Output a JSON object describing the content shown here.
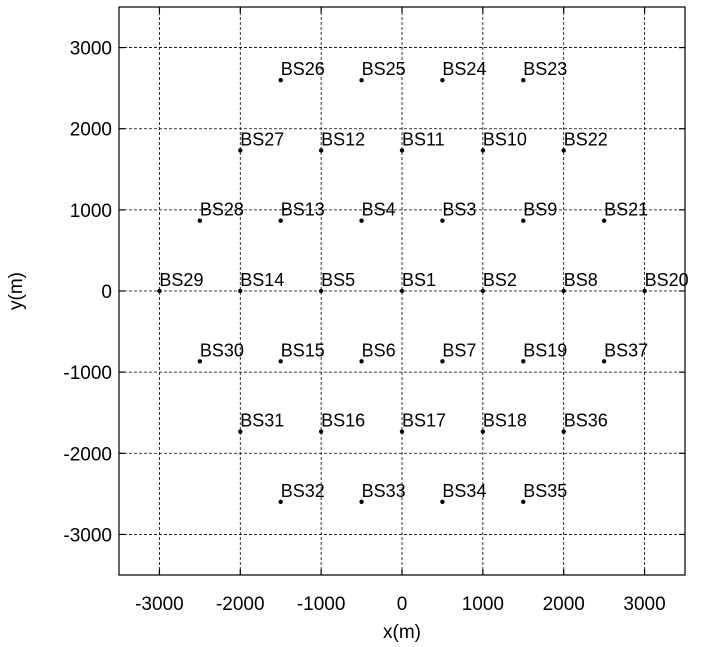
{
  "chart_data": {
    "type": "scatter",
    "xlabel": "x(m)",
    "ylabel": "y(m)",
    "xlim": [
      -3500,
      3500
    ],
    "ylim": [
      -3500,
      3500
    ],
    "xticks": [
      -3000,
      -2000,
      -1000,
      0,
      1000,
      2000,
      3000
    ],
    "yticks": [
      -3000,
      -2000,
      -1000,
      0,
      1000,
      2000,
      3000
    ],
    "xtick_labels": [
      "-3000",
      "-2000",
      "-1000",
      "0",
      "1000",
      "2000",
      "3000"
    ],
    "ytick_labels": [
      "-3000",
      "-2000",
      "-1000",
      "0",
      "1000",
      "2000",
      "3000"
    ],
    "grid": true,
    "points": [
      {
        "label": "BS1",
        "x": 0,
        "y": 0
      },
      {
        "label": "BS2",
        "x": 1000,
        "y": 0
      },
      {
        "label": "BS3",
        "x": 500,
        "y": 866
      },
      {
        "label": "BS4",
        "x": -500,
        "y": 866
      },
      {
        "label": "BS5",
        "x": -1000,
        "y": 0
      },
      {
        "label": "BS6",
        "x": -500,
        "y": -866
      },
      {
        "label": "BS7",
        "x": 500,
        "y": -866
      },
      {
        "label": "BS8",
        "x": 2000,
        "y": 0
      },
      {
        "label": "BS9",
        "x": 1500,
        "y": 866
      },
      {
        "label": "BS10",
        "x": 1000,
        "y": 1732
      },
      {
        "label": "BS11",
        "x": 0,
        "y": 1732
      },
      {
        "label": "BS12",
        "x": -1000,
        "y": 1732
      },
      {
        "label": "BS13",
        "x": -1500,
        "y": 866
      },
      {
        "label": "BS14",
        "x": -2000,
        "y": 0
      },
      {
        "label": "BS15",
        "x": -1500,
        "y": -866
      },
      {
        "label": "BS16",
        "x": -1000,
        "y": -1732
      },
      {
        "label": "BS17",
        "x": 0,
        "y": -1732
      },
      {
        "label": "BS18",
        "x": 1000,
        "y": -1732
      },
      {
        "label": "BS19",
        "x": 1500,
        "y": -866
      },
      {
        "label": "BS20",
        "x": 3000,
        "y": 0
      },
      {
        "label": "BS21",
        "x": 2500,
        "y": 866
      },
      {
        "label": "BS22",
        "x": 2000,
        "y": 1732
      },
      {
        "label": "BS23",
        "x": 1500,
        "y": 2598
      },
      {
        "label": "BS24",
        "x": 500,
        "y": 2598
      },
      {
        "label": "BS25",
        "x": -500,
        "y": 2598
      },
      {
        "label": "BS26",
        "x": -1500,
        "y": 2598
      },
      {
        "label": "BS27",
        "x": -2000,
        "y": 1732
      },
      {
        "label": "BS28",
        "x": -2500,
        "y": 866
      },
      {
        "label": "BS29",
        "x": -3000,
        "y": 0
      },
      {
        "label": "BS30",
        "x": -2500,
        "y": -866
      },
      {
        "label": "BS31",
        "x": -2000,
        "y": -1732
      },
      {
        "label": "BS32",
        "x": -1500,
        "y": -2598
      },
      {
        "label": "BS33",
        "x": -500,
        "y": -2598
      },
      {
        "label": "BS34",
        "x": 500,
        "y": -2598
      },
      {
        "label": "BS35",
        "x": 1500,
        "y": -2598
      },
      {
        "label": "BS36",
        "x": 2000,
        "y": -1732
      },
      {
        "label": "BS37",
        "x": 2500,
        "y": -866
      }
    ]
  }
}
